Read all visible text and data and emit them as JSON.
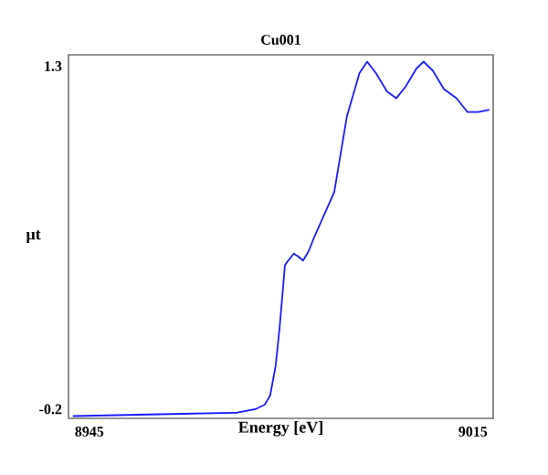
{
  "chart_data": {
    "type": "line",
    "title": "Cu001",
    "xlabel": "Energy [eV]",
    "ylabel": "μt",
    "xlim": [
      8941.2,
      9018.7
    ],
    "ylim": [
      -0.24,
      1.35
    ],
    "xticks": [
      8945,
      9015
    ],
    "yticks": [
      -0.2,
      1.3
    ],
    "grid": false,
    "marker": "none",
    "line_style": "solid",
    "series": [
      {
        "color": "#1a1aff",
        "x": [
          8942,
          8962,
          8972,
          8975.3,
          8977,
          8978,
          8979,
          8979.7,
          8980.7,
          8981.3,
          8982.3,
          8983,
          8984,
          8985,
          8986,
          8989.7,
          8992,
          8994.3,
          8995.7,
          8997.3,
          8999.3,
          9001,
          9002.7,
          9004.7,
          9006,
          9007.7,
          9009.7,
          9012,
          9014,
          9016,
          9018
        ],
        "values": [
          -0.23,
          -0.22,
          -0.215,
          -0.2,
          -0.18,
          -0.14,
          -0.01,
          0.15,
          0.43,
          0.45,
          0.48,
          0.47,
          0.45,
          0.49,
          0.55,
          0.75,
          1.08,
          1.27,
          1.32,
          1.27,
          1.19,
          1.16,
          1.21,
          1.29,
          1.32,
          1.28,
          1.2,
          1.16,
          1.1,
          1.1,
          1.11
        ]
      }
    ]
  }
}
